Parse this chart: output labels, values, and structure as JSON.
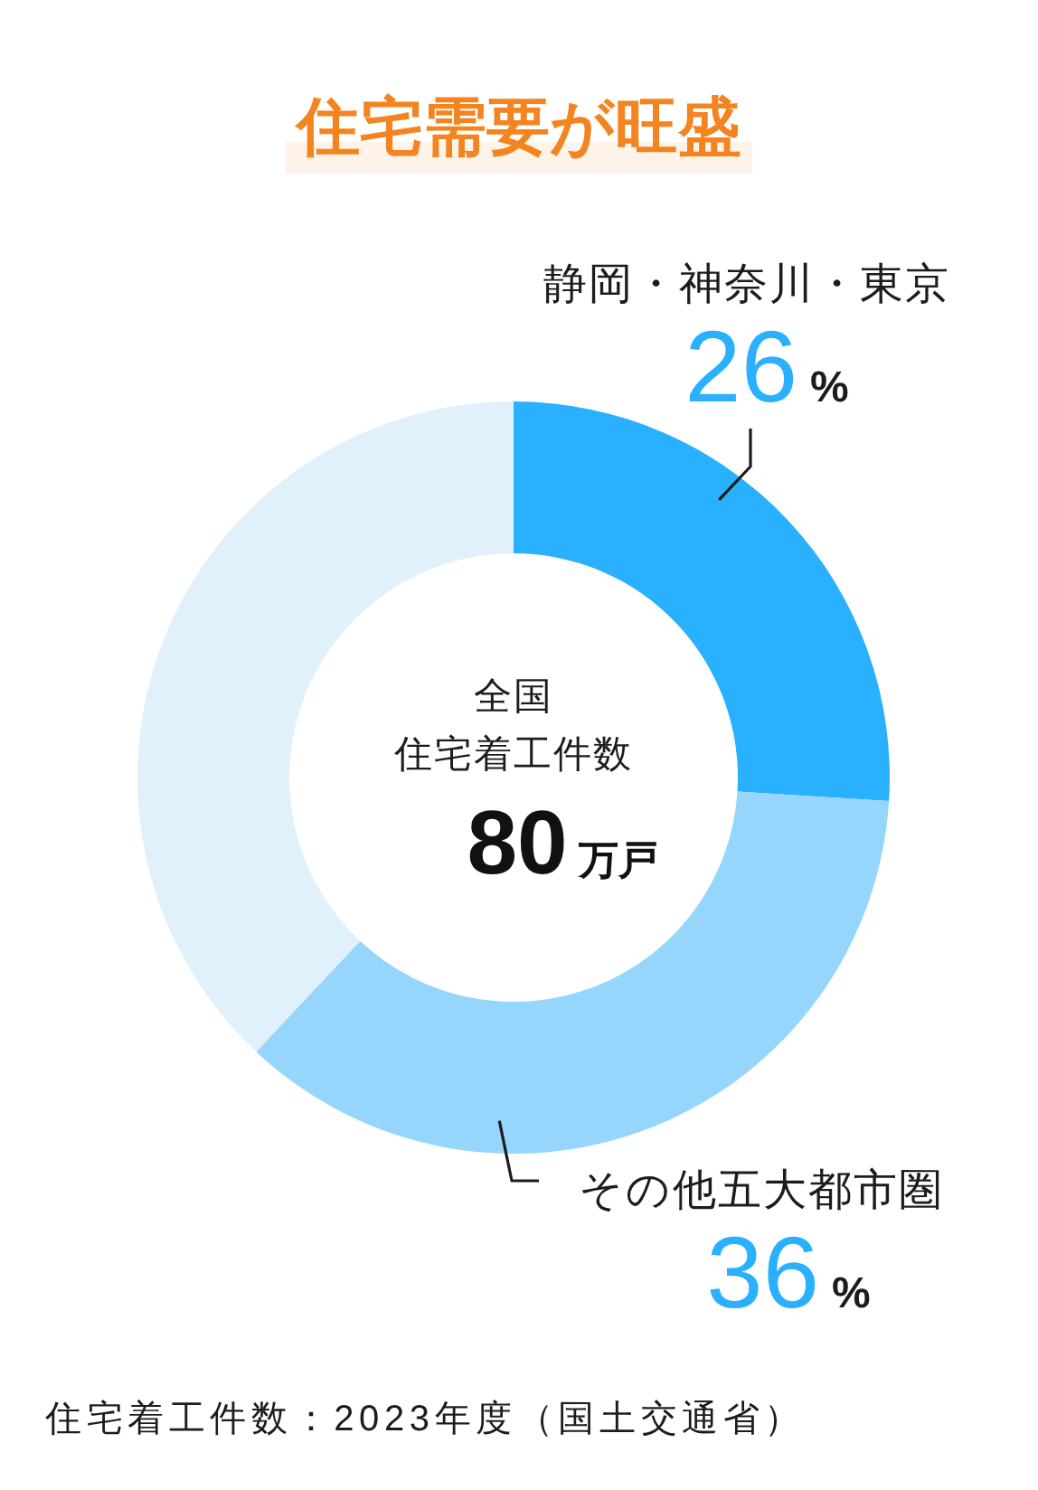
{
  "chart_data": {
    "type": "donut",
    "title": "住宅需要が旺盛",
    "categories": [
      "静岡・神奈川・東京",
      "その他五大都市圏",
      null
    ],
    "values": [
      26,
      36,
      38
    ],
    "colors": [
      "#29b0ff",
      "#96d6fd",
      "#e1f1fc"
    ],
    "value_labels": [
      "26%",
      "36%",
      null
    ],
    "annotations": [
      "全国",
      "住宅着工件数",
      "80万戸",
      "住宅着工件数：2023年度（国土交通省）"
    ]
  }
}
